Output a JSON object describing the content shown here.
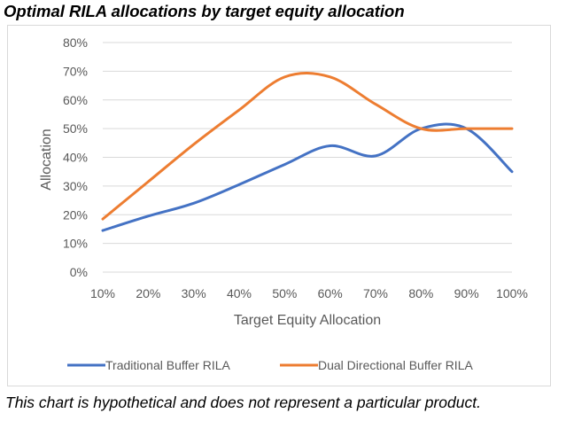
{
  "title": "Optimal RILA allocations by target equity allocation",
  "footnote": "This chart is hypothetical and does not represent a particular product.",
  "chart_data": {
    "type": "line",
    "xlabel": "Target Equity Allocation",
    "ylabel": "Allocation",
    "x": [
      "10%",
      "20%",
      "30%",
      "40%",
      "50%",
      "60%",
      "70%",
      "80%",
      "90%",
      "100%"
    ],
    "y_ticks": [
      "0%",
      "10%",
      "20%",
      "30%",
      "40%",
      "50%",
      "60%",
      "70%",
      "80%"
    ],
    "ylim": [
      0,
      80
    ],
    "grid": true,
    "legend_position": "bottom",
    "series": [
      {
        "name": "Traditional Buffer RILA",
        "color": "#4472c4",
        "values": [
          14.5,
          19.5,
          24,
          30.5,
          37.5,
          44,
          40.5,
          50,
          50,
          35
        ]
      },
      {
        "name": "Dual Directional Buffer RILA",
        "color": "#ed7d31",
        "values": [
          18.5,
          31.5,
          44.5,
          56.5,
          68,
          68,
          58.5,
          50,
          50,
          50
        ]
      }
    ]
  }
}
